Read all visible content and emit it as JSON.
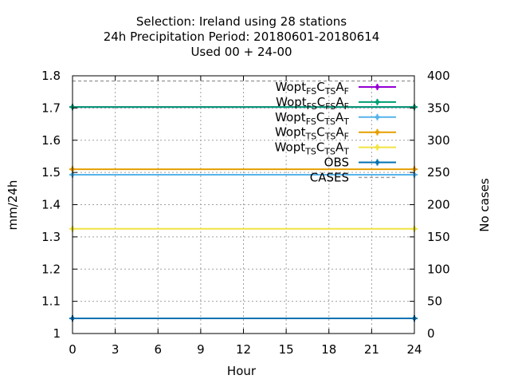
{
  "chart_data": {
    "type": "line",
    "title": {
      "line1": "Selection: Ireland using    28 stations",
      "line2": "24h Precipitation    Period: 20180601-20180614",
      "line3": "Used  00 + 24-00"
    },
    "xlabel": "Hour",
    "ylabel": "mm/24h",
    "y2label": "No cases",
    "xlim": [
      0,
      24
    ],
    "ylim": [
      1.0,
      1.8
    ],
    "y2lim": [
      0,
      400
    ],
    "x_ticks": [
      0,
      3,
      6,
      9,
      12,
      15,
      18,
      21,
      24
    ],
    "y_ticks": [
      1,
      1.1,
      1.2,
      1.3,
      1.4,
      1.5,
      1.6,
      1.7,
      1.8
    ],
    "y2_ticks": [
      0,
      50,
      100,
      150,
      200,
      250,
      300,
      350,
      400
    ],
    "grid": true,
    "legend_position": "top-right",
    "x": [
      0,
      24
    ],
    "series": [
      {
        "name": "Wopt FS CTS AF",
        "legend": [
          [
            "Wopt",
            ""
          ],
          [
            "FS",
            "sub"
          ],
          [
            "C",
            ""
          ],
          [
            "TS",
            "sub"
          ],
          [
            "A",
            ""
          ],
          [
            "F",
            "sub"
          ]
        ],
        "values": [
          1.703,
          1.703
        ],
        "color": "#9400d3",
        "axis": "y"
      },
      {
        "name": "Wopt FS CFS AF",
        "legend": [
          [
            "Wopt",
            ""
          ],
          [
            "FS",
            "sub"
          ],
          [
            "C",
            ""
          ],
          [
            "FS",
            "sub"
          ],
          [
            "A",
            ""
          ],
          [
            "F",
            "sub"
          ]
        ],
        "values": [
          1.703,
          1.703
        ],
        "color": "#009e73",
        "axis": "y"
      },
      {
        "name": "Wopt FS CTS AT",
        "legend": [
          [
            "Wopt",
            ""
          ],
          [
            "FS",
            "sub"
          ],
          [
            "C",
            ""
          ],
          [
            "TS",
            "sub"
          ],
          [
            "A",
            ""
          ],
          [
            "T",
            "sub"
          ]
        ],
        "values": [
          1.493,
          1.493
        ],
        "color": "#56b4e9",
        "axis": "y"
      },
      {
        "name": "Wopt TS CTS AF",
        "legend": [
          [
            "Wopt",
            ""
          ],
          [
            "TS",
            "sub"
          ],
          [
            "C",
            ""
          ],
          [
            "TS",
            "sub"
          ],
          [
            "A",
            ""
          ],
          [
            "F",
            "sub"
          ]
        ],
        "values": [
          1.51,
          1.51
        ],
        "color": "#e69f00",
        "axis": "y"
      },
      {
        "name": "Wopt TS CTS AT",
        "legend": [
          [
            "Wopt",
            ""
          ],
          [
            "TS",
            "sub"
          ],
          [
            "C",
            ""
          ],
          [
            "TS",
            "sub"
          ],
          [
            "A",
            ""
          ],
          [
            "T",
            "sub"
          ]
        ],
        "values": [
          1.325,
          1.325
        ],
        "color": "#f0e442",
        "axis": "y"
      },
      {
        "name": "OBS",
        "legend": [
          [
            "OBS",
            ""
          ]
        ],
        "values": [
          1.047,
          1.047
        ],
        "color": "#0072b2",
        "axis": "y"
      },
      {
        "name": "CASES",
        "legend": [
          [
            "CASES",
            ""
          ]
        ],
        "values": [
          392,
          392
        ],
        "color": "#a0a0a0",
        "axis": "y2",
        "dashed": true
      }
    ]
  }
}
